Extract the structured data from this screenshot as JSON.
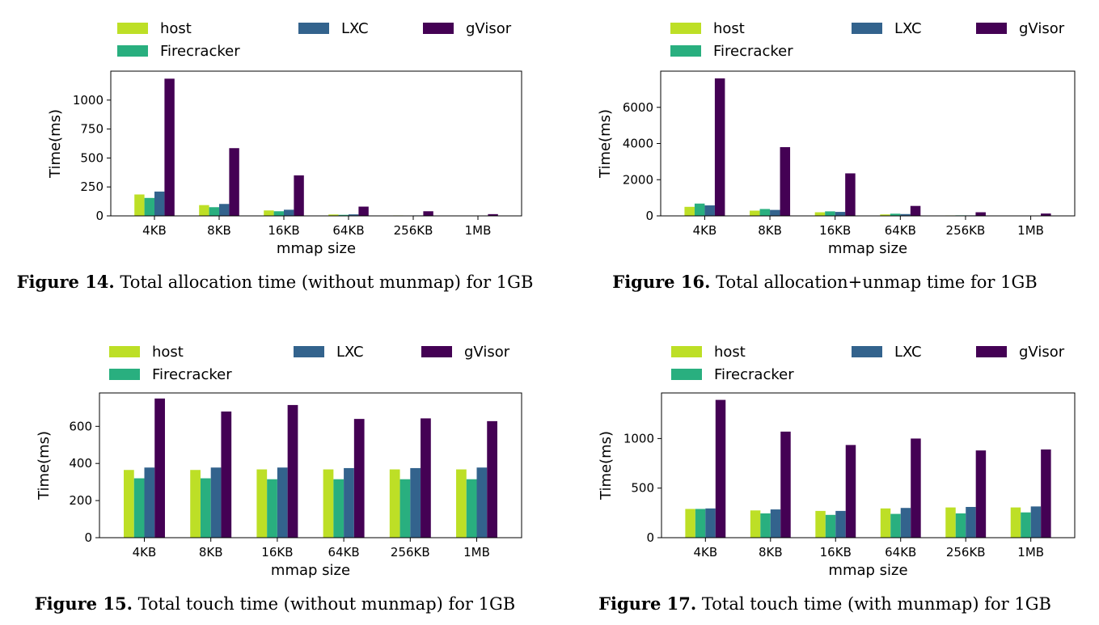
{
  "chart_data": [
    {
      "id": "fig14",
      "type": "bar",
      "figure_label": "Figure 14.",
      "caption": "Total allocation time (without munmap) for 1GB",
      "xlabel": "mmap size",
      "ylabel": "Time(ms)",
      "categories": [
        "4KB",
        "8KB",
        "16KB",
        "64KB",
        "256KB",
        "1MB"
      ],
      "ylim": [
        0,
        1250
      ],
      "yticks": [
        0,
        250,
        500,
        750,
        1000
      ],
      "series": [
        {
          "name": "host",
          "color": "#bddf26",
          "values": [
            185,
            93,
            47,
            12,
            4,
            2
          ]
        },
        {
          "name": "Firecracker",
          "color": "#29af7f",
          "values": [
            155,
            75,
            40,
            9,
            3,
            2
          ]
        },
        {
          "name": "LXC",
          "color": "#33638d",
          "values": [
            210,
            103,
            53,
            13,
            4,
            2
          ]
        },
        {
          "name": "gVisor",
          "color": "#440154",
          "values": [
            1185,
            585,
            350,
            80,
            40,
            15
          ]
        }
      ]
    },
    {
      "id": "fig16",
      "type": "bar",
      "figure_label": "Figure 16.",
      "caption": "Total allocation+unmap time for 1GB",
      "xlabel": "mmap size",
      "ylabel": "Time(ms)",
      "categories": [
        "4KB",
        "8KB",
        "16KB",
        "64KB",
        "256KB",
        "1MB"
      ],
      "ylim": [
        0,
        8000
      ],
      "yticks": [
        0,
        2000,
        4000,
        6000
      ],
      "series": [
        {
          "name": "host",
          "color": "#bddf26",
          "values": [
            500,
            290,
            200,
            80,
            25,
            10
          ]
        },
        {
          "name": "Firecracker",
          "color": "#29af7f",
          "values": [
            680,
            380,
            250,
            120,
            30,
            12
          ]
        },
        {
          "name": "LXC",
          "color": "#33638d",
          "values": [
            580,
            330,
            220,
            100,
            28,
            11
          ]
        },
        {
          "name": "gVisor",
          "color": "#440154",
          "values": [
            7600,
            3800,
            2350,
            550,
            200,
            130
          ]
        }
      ]
    },
    {
      "id": "fig15",
      "type": "bar",
      "figure_label": "Figure 15.",
      "caption": "Total touch time (without munmap) for 1GB",
      "xlabel": "mmap size",
      "ylabel": "Time(ms)",
      "categories": [
        "4KB",
        "8KB",
        "16KB",
        "64KB",
        "256KB",
        "1MB"
      ],
      "ylim": [
        0,
        780
      ],
      "yticks": [
        0,
        200,
        400,
        600
      ],
      "series": [
        {
          "name": "host",
          "color": "#bddf26",
          "values": [
            365,
            365,
            368,
            368,
            368,
            368
          ]
        },
        {
          "name": "Firecracker",
          "color": "#29af7f",
          "values": [
            320,
            320,
            315,
            315,
            315,
            315
          ]
        },
        {
          "name": "LXC",
          "color": "#33638d",
          "values": [
            378,
            378,
            378,
            375,
            375,
            378
          ]
        },
        {
          "name": "gVisor",
          "color": "#440154",
          "values": [
            750,
            680,
            715,
            640,
            643,
            628
          ]
        }
      ]
    },
    {
      "id": "fig17",
      "type": "bar",
      "figure_label": "Figure 17.",
      "caption": "Total touch time (with munmap) for 1GB",
      "xlabel": "mmap size",
      "ylabel": "Time(ms)",
      "categories": [
        "4KB",
        "8KB",
        "16KB",
        "64KB",
        "256KB",
        "1MB"
      ],
      "ylim": [
        0,
        1460
      ],
      "yticks": [
        0,
        500,
        1000
      ],
      "series": [
        {
          "name": "host",
          "color": "#bddf26",
          "values": [
            290,
            275,
            270,
            295,
            305,
            305
          ]
        },
        {
          "name": "Firecracker",
          "color": "#29af7f",
          "values": [
            290,
            245,
            230,
            240,
            245,
            255
          ]
        },
        {
          "name": "LXC",
          "color": "#33638d",
          "values": [
            295,
            285,
            270,
            300,
            310,
            315
          ]
        },
        {
          "name": "gVisor",
          "color": "#440154",
          "values": [
            1390,
            1070,
            935,
            1000,
            880,
            890
          ]
        }
      ]
    }
  ]
}
